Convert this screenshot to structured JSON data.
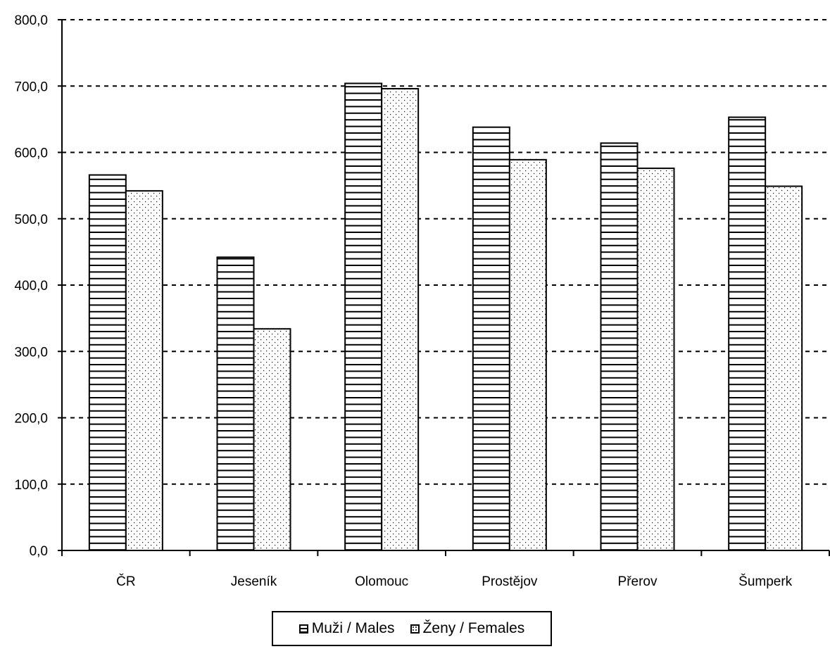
{
  "chart_data": {
    "type": "bar",
    "categories": [
      "ČR",
      "Jeseník",
      "Olomouc",
      "Prostějov",
      "Přerov",
      "Šumperk"
    ],
    "series": [
      {
        "name": "Muži / Males",
        "values": [
          566,
          442,
          704,
          638,
          614,
          653
        ]
      },
      {
        "name": "Ženy / Females",
        "values": [
          542,
          334,
          696,
          589,
          576,
          549
        ]
      }
    ],
    "ylim": [
      0,
      800
    ],
    "yticks": [
      "0,0",
      "100,0",
      "200,0",
      "300,0",
      "400,0",
      "500,0",
      "600,0",
      "700,0",
      "800,0"
    ],
    "grid": "horizontal dashed",
    "legend_position": "bottom"
  }
}
